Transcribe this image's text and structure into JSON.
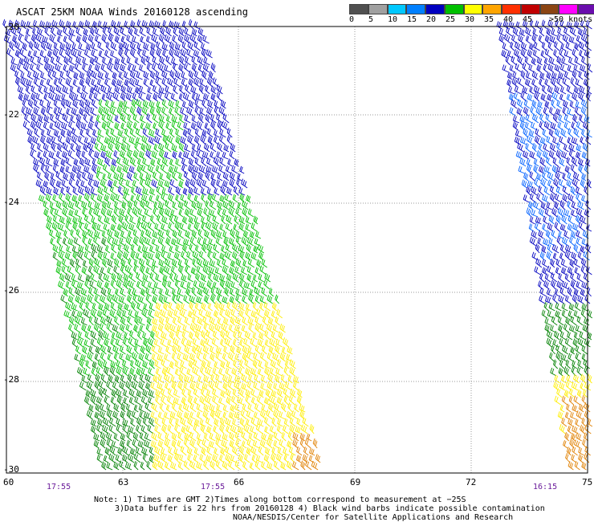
{
  "title": "ASCAT 25KM NOAA Winds 20160128 ascending",
  "legend": {
    "labels": [
      "0",
      "5",
      "10",
      "15",
      "20",
      "25",
      "30",
      "35",
      "40",
      "45",
      ">50 knots"
    ],
    "colors": [
      "#505050",
      "#a0a0a0",
      "#00c8ff",
      "#0080ff",
      "#0000c0",
      "#00c000",
      "#ffff00",
      "#ffa500",
      "#ff3000",
      "#c00000",
      "#8b4513",
      "#ff00ff",
      "#6a0dad"
    ]
  },
  "axes": {
    "lat_labels": [
      "-20",
      "-22",
      "-24",
      "-26",
      "-28",
      "-30"
    ],
    "lon_labels": [
      "60",
      "63",
      "66",
      "69",
      "72",
      "75"
    ]
  },
  "time_labels": [
    "17:55",
    "17:55",
    "16:15"
  ],
  "notes": {
    "line1": "Note: 1) Times are GMT 2)Times along bottom correspond to measurement at −25S",
    "line2": "3)Data buffer is 22 hrs from 20160128 4) Black wind barbs indicate possible contamination",
    "line3": "NOAA/NESDIS/Center for Satellite Applications and Research"
  },
  "colors": {
    "blue": "#0000c0",
    "light_blue": "#0060ff",
    "green": "#00c000",
    "dark_green": "#008000",
    "yellow": "#ffee00",
    "orange": "#e08000",
    "grid": "#999999"
  }
}
